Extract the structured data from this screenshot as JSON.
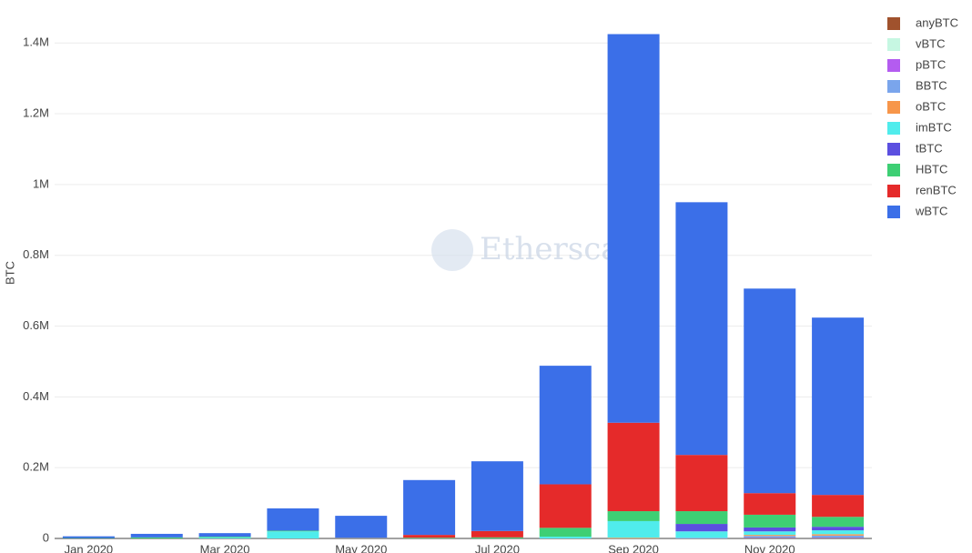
{
  "chart_data": {
    "type": "stacked_bar",
    "y_label": "BTC",
    "watermark": "Etherscan",
    "categories": [
      "Jan 2020",
      null,
      "Mar 2020",
      null,
      "May 2020",
      null,
      "Jul 2020",
      null,
      "Sep 2020",
      null,
      "Nov 2020",
      null
    ],
    "ylim": [
      0,
      1470000
    ],
    "yticks": [
      0,
      {
        "value": 200000,
        "label": "0.2M"
      },
      {
        "value": 400000,
        "label": "0.4M"
      },
      {
        "value": 600000,
        "label": "0.6M"
      },
      {
        "value": 800000,
        "label": "0.8M"
      },
      {
        "value": 1000000,
        "label": "1M"
      },
      {
        "value": 1200000,
        "label": "1.2M"
      },
      {
        "value": 1400000,
        "label": "1.4M"
      }
    ],
    "grid": true,
    "legend": "top-right",
    "series": [
      {
        "name": "anyBTC",
        "color": "#a0522d",
        "values": [
          0,
          0,
          0,
          0,
          0,
          0,
          0,
          0,
          0,
          0,
          1000,
          1000
        ]
      },
      {
        "name": "vBTC",
        "color": "#c6f7e2",
        "values": [
          0,
          0,
          0,
          0,
          0,
          0,
          0,
          0,
          0,
          0,
          0,
          0
        ]
      },
      {
        "name": "pBTC",
        "color": "#b45cf0",
        "values": [
          0,
          0,
          0,
          0,
          0,
          0,
          0,
          0,
          0,
          0,
          1000,
          1000
        ]
      },
      {
        "name": "BBTC",
        "color": "#7aa5ec",
        "values": [
          0,
          0,
          0,
          0,
          0,
          0,
          0,
          0,
          0,
          2000,
          5000,
          6000
        ]
      },
      {
        "name": "oBTC",
        "color": "#f7964a",
        "values": [
          0,
          0,
          0,
          0,
          0,
          0,
          0,
          0,
          2000,
          0,
          3000,
          4000
        ]
      },
      {
        "name": "imBTC",
        "color": "#50ecec",
        "values": [
          0,
          0,
          3000,
          20000,
          1000,
          0,
          0,
          5000,
          47000,
          18000,
          10000,
          11000
        ]
      },
      {
        "name": "tBTC",
        "color": "#5b4fe0",
        "values": [
          0,
          0,
          0,
          0,
          0,
          0,
          0,
          0,
          0,
          21000,
          11000,
          10000
        ]
      },
      {
        "name": "HBTC",
        "color": "#3ecf74",
        "values": [
          1000,
          3000,
          2000,
          2000,
          0,
          2000,
          3000,
          25000,
          28000,
          36000,
          36000,
          28000
        ]
      },
      {
        "name": "renBTC",
        "color": "#e52a2a",
        "values": [
          0,
          0,
          0,
          0,
          1000,
          8000,
          18000,
          123000,
          250000,
          159000,
          61000,
          62000
        ]
      },
      {
        "name": "wBTC",
        "color": "#3b6fe8",
        "values": [
          5000,
          10000,
          10000,
          63000,
          62000,
          155000,
          197000,
          335000,
          1098000,
          714000,
          578000,
          501000
        ]
      }
    ]
  }
}
